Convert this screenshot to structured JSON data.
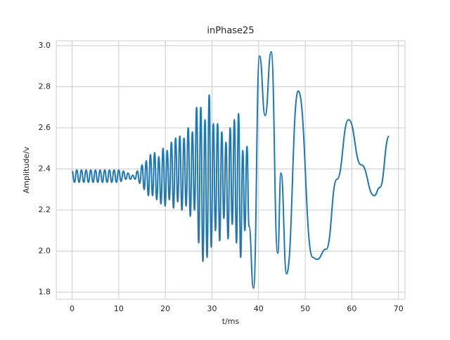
{
  "chart_data": {
    "type": "line",
    "title": "inPhase25",
    "x_label": "t/ms",
    "y_label": "Amplitude/v",
    "x": [
      0,
      0.5,
      1,
      1.5,
      2,
      2.5,
      3,
      3.5,
      4,
      4.5,
      5,
      5.5,
      6,
      6.5,
      7,
      7.5,
      8,
      8.5,
      9,
      9.5,
      10,
      10.5,
      11,
      11.5,
      12,
      12.5,
      13,
      13.5,
      14,
      14.5,
      15,
      15.45,
      15.9,
      16.35,
      16.8,
      17.25,
      17.7,
      18.15,
      18.6,
      19.05,
      19.5,
      19.95,
      20.4,
      20.85,
      21.3,
      21.75,
      22.2,
      22.65,
      23.1,
      23.55,
      24.0,
      24.45,
      24.9,
      25.35,
      25.8,
      26.25,
      26.7,
      27.15,
      27.6,
      28.05,
      28.5,
      28.95,
      29.4,
      29.85,
      30.3,
      30.75,
      31.2,
      31.65,
      32.1,
      32.55,
      33.0,
      33.45,
      33.9,
      34.35,
      34.8,
      35.25,
      35.7,
      36.15,
      36.6,
      37.05,
      37.5,
      37.95,
      38.9,
      40.2,
      41.4,
      42.7,
      44.1,
      44.8,
      46.0,
      48.5,
      51.6,
      52.5,
      54.5,
      56.8,
      59.3,
      62.0,
      64.8,
      66.0,
      68.0
    ],
    "series": [
      {
        "name": "inPhase25",
        "color": "#1f77b4",
        "values": [
          2.39,
          2.335,
          2.395,
          2.335,
          2.395,
          2.335,
          2.395,
          2.335,
          2.395,
          2.335,
          2.395,
          2.335,
          2.395,
          2.335,
          2.395,
          2.335,
          2.395,
          2.335,
          2.395,
          2.335,
          2.395,
          2.34,
          2.39,
          2.35,
          2.38,
          2.35,
          2.37,
          2.35,
          2.39,
          2.33,
          2.42,
          2.3,
          2.44,
          2.27,
          2.47,
          2.27,
          2.48,
          2.25,
          2.46,
          2.23,
          2.5,
          2.22,
          2.49,
          2.25,
          2.53,
          2.21,
          2.55,
          2.24,
          2.56,
          2.2,
          2.55,
          2.22,
          2.6,
          2.17,
          2.58,
          2.2,
          2.7,
          2.04,
          2.7,
          1.95,
          2.64,
          1.97,
          2.76,
          2.02,
          2.62,
          2.1,
          2.62,
          2.05,
          2.58,
          2.16,
          2.53,
          2.06,
          2.6,
          2.13,
          2.64,
          2.04,
          2.67,
          1.97,
          2.49,
          2.1,
          2.51,
          2.12,
          1.82,
          2.95,
          2.66,
          2.97,
          1.99,
          2.38,
          1.89,
          2.78,
          1.97,
          1.96,
          2.01,
          2.35,
          2.64,
          2.42,
          2.27,
          2.31,
          2.56
        ]
      }
    ],
    "xlim": [
      -3.4,
      71.4
    ],
    "ylim": [
      1.766,
      3.024
    ],
    "xticks": [
      0,
      10,
      20,
      30,
      40,
      50,
      60,
      70
    ],
    "yticks": [
      1.8,
      {
        "value": 2.0,
        "label": "2.0"
      },
      2.2,
      2.4,
      2.6,
      2.8,
      {
        "value": 3.0,
        "label": "3.0"
      }
    ],
    "grid": true
  }
}
